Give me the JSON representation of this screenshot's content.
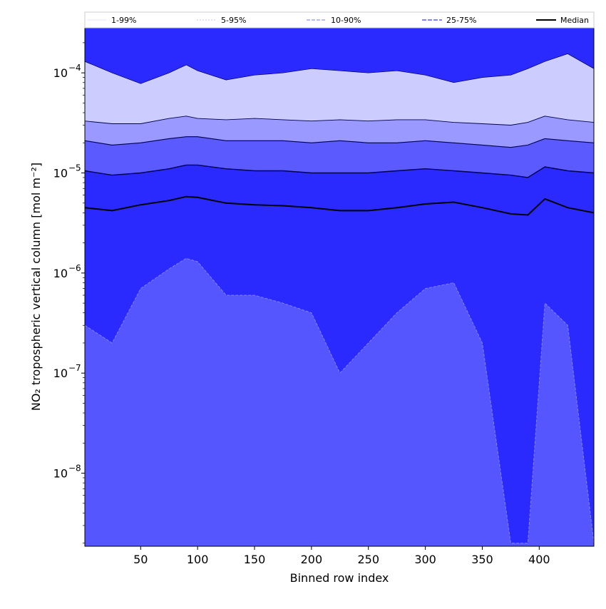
{
  "chart_data": {
    "type": "area",
    "xlabel": "Binned row index",
    "ylabel": "NO₂ tropospheric vertical column [mol m⁻²]",
    "xlim": [
      1,
      448
    ],
    "ylim_log10": [
      -8.73,
      -3.55
    ],
    "yscale": "log",
    "x_ticks": [
      50,
      100,
      150,
      200,
      250,
      300,
      350,
      400
    ],
    "y_ticks": [
      {
        "exp": -4,
        "label": "−4"
      },
      {
        "exp": -5,
        "label": "−5"
      },
      {
        "exp": -6,
        "label": "−6"
      },
      {
        "exp": -7,
        "label": "−7"
      },
      {
        "exp": -8,
        "label": "−8"
      }
    ],
    "tick_base": "10",
    "legend": {
      "placement": "top",
      "items": [
        "1-99%",
        "5-95%",
        "10-90%",
        "25-75%",
        "Median"
      ]
    },
    "x": [
      1,
      25,
      50,
      75,
      90,
      100,
      125,
      150,
      175,
      200,
      225,
      250,
      275,
      300,
      325,
      350,
      375,
      390,
      405,
      425,
      448
    ],
    "series": [
      {
        "name": "99%",
        "values": [
          0.00013,
          0.0001,
          7.8e-05,
          0.0001,
          0.00012,
          0.000105,
          8.5e-05,
          9.5e-05,
          0.0001,
          0.00011,
          0.000105,
          0.0001,
          0.000105,
          9.5e-05,
          8e-05,
          9e-05,
          9.5e-05,
          0.00011,
          0.00013,
          0.000155,
          0.00011
        ]
      },
      {
        "name": "95%",
        "values": [
          3.3e-05,
          3.1e-05,
          3.1e-05,
          3.5e-05,
          3.7e-05,
          3.5e-05,
          3.4e-05,
          3.5e-05,
          3.4e-05,
          3.3e-05,
          3.4e-05,
          3.3e-05,
          3.4e-05,
          3.4e-05,
          3.2e-05,
          3.1e-05,
          3e-05,
          3.2e-05,
          3.7e-05,
          3.4e-05,
          3.2e-05
        ]
      },
      {
        "name": "90%",
        "values": [
          2.1e-05,
          1.9e-05,
          2e-05,
          2.2e-05,
          2.3e-05,
          2.3e-05,
          2.1e-05,
          2.1e-05,
          2.1e-05,
          2e-05,
          2.1e-05,
          2e-05,
          2e-05,
          2.1e-05,
          2e-05,
          1.9e-05,
          1.8e-05,
          1.9e-05,
          2.2e-05,
          2.1e-05,
          2e-05
        ]
      },
      {
        "name": "75%",
        "values": [
          1.05e-05,
          9.5e-06,
          1e-05,
          1.1e-05,
          1.2e-05,
          1.2e-05,
          1.1e-05,
          1.05e-05,
          1.05e-05,
          1e-05,
          1e-05,
          1e-05,
          1.05e-05,
          1.1e-05,
          1.05e-05,
          1e-05,
          9.5e-06,
          9e-06,
          1.15e-05,
          1.05e-05,
          1e-05
        ]
      },
      {
        "name": "Median",
        "values": [
          4.5e-06,
          4.2e-06,
          4.8e-06,
          5.3e-06,
          5.8e-06,
          5.7e-06,
          5e-06,
          4.8e-06,
          4.7e-06,
          4.5e-06,
          4.2e-06,
          4.2e-06,
          4.5e-06,
          4.9e-06,
          5.1e-06,
          4.5e-06,
          3.9e-06,
          3.8e-06,
          5.5e-06,
          4.5e-06,
          4e-06
        ]
      },
      {
        "name": "25%",
        "values": [
          3e-07,
          2e-07,
          7e-07,
          1.1e-06,
          1.4e-06,
          1.3e-06,
          6e-07,
          6e-07,
          5e-07,
          4e-07,
          1e-07,
          2e-07,
          4e-07,
          7e-07,
          8e-07,
          2e-07,
          2e-09,
          2e-09,
          5e-07,
          3e-07,
          2e-09
        ]
      }
    ]
  },
  "colors": {
    "band_1_99": "#ccccff",
    "band_5_95": "#9999ff",
    "band_10_90": "#5a5aff",
    "band_25_75": "#2a2aff",
    "band_lower": "#5656ff",
    "median": "#000000",
    "percentile_line": "#000050"
  }
}
